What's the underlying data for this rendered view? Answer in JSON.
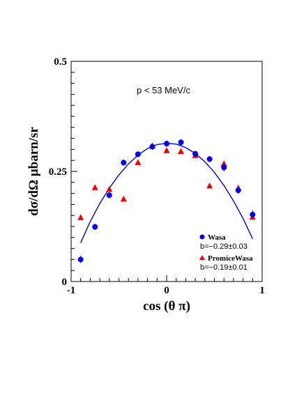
{
  "chart_data": {
    "type": "scatter",
    "title": "",
    "annotation": "p < 53 MeV/c",
    "xlabel": "cos (θ π)",
    "ylabel": "dσ/dΩ μbarn/sr",
    "xlim": [
      -1,
      1
    ],
    "ylim": [
      0,
      0.5
    ],
    "x_ticks": [
      "-1",
      "0",
      "1"
    ],
    "y_ticks": [
      "0",
      "0.25",
      "0.5"
    ],
    "grid": false,
    "legend_position": "bottom-right",
    "series": [
      {
        "name": "Wasa",
        "subtitle": "b=−0.29±0.03",
        "marker": "circle",
        "color": "#0000ee",
        "x": [
          -0.9,
          -0.75,
          -0.6,
          -0.45,
          -0.3,
          -0.15,
          0.0,
          0.15,
          0.3,
          0.45,
          0.6,
          0.75,
          0.9
        ],
        "y": [
          0.05,
          0.124,
          0.196,
          0.27,
          0.289,
          0.306,
          0.313,
          0.316,
          0.29,
          0.278,
          0.259,
          0.207,
          0.152
        ],
        "err": [
          0.008,
          0.007,
          0.007,
          0.007,
          0.007,
          0.007,
          0.007,
          0.007,
          0.007,
          0.007,
          0.009,
          0.008,
          0.01
        ]
      },
      {
        "name": "PromiceWasa",
        "subtitle": "b=−0.19±0.01",
        "marker": "triangle",
        "color": "#ee0000",
        "x": [
          -0.9,
          -0.75,
          -0.6,
          -0.45,
          -0.3,
          -0.15,
          0.0,
          0.15,
          0.3,
          0.45,
          0.6,
          0.75,
          0.9
        ],
        "y": [
          0.145,
          0.213,
          0.209,
          0.187,
          0.27,
          0.308,
          0.297,
          0.295,
          0.286,
          0.217,
          0.267,
          0.212,
          0.146
        ],
        "err": [
          0,
          0,
          0.005,
          0,
          0.005,
          0.006,
          0.006,
          0.005,
          0.004,
          0,
          0.005,
          0.004,
          0.004
        ]
      }
    ],
    "fit_curve": {
      "color": "#0000cc",
      "x": [
        -0.9,
        -0.8,
        -0.7,
        -0.6,
        -0.5,
        -0.4,
        -0.3,
        -0.2,
        -0.1,
        0.0,
        0.1,
        0.2,
        0.3,
        0.4,
        0.5,
        0.6,
        0.7,
        0.8,
        0.9
      ],
      "y": [
        0.088,
        0.136,
        0.177,
        0.212,
        0.242,
        0.267,
        0.287,
        0.302,
        0.311,
        0.314,
        0.312,
        0.304,
        0.291,
        0.272,
        0.248,
        0.218,
        0.183,
        0.143,
        0.097
      ]
    }
  }
}
